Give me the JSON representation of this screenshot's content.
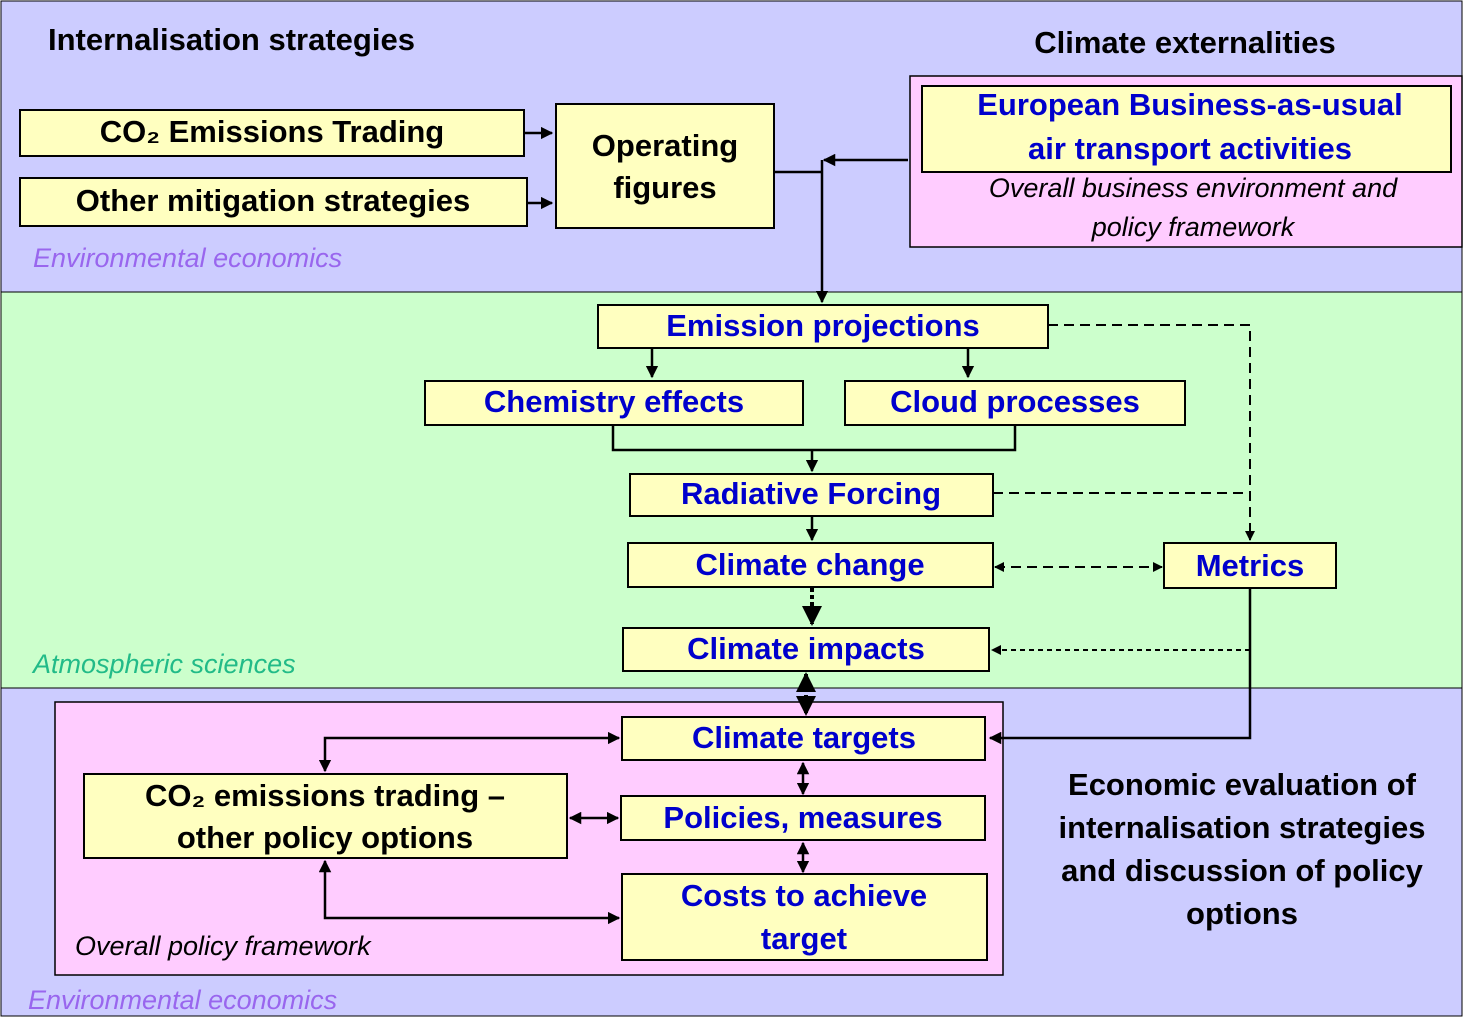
{
  "sections": {
    "top": {
      "title_left": "Internalisation strategies",
      "title_right": "Climate externalities",
      "label": "Environmental economics",
      "context": [
        "Overall business environment and",
        "policy framework"
      ]
    },
    "middle": {
      "label": "Atmospheric sciences"
    },
    "bottom": {
      "label": "Environmental economics",
      "context": "Overall policy framework",
      "evaluation": [
        "Economic evaluation of",
        "internalisation strategies",
        "and discussion of policy",
        "options"
      ]
    }
  },
  "nodes": [
    {
      "lines": [
        "CO₂ Emissions Trading"
      ]
    },
    {
      "lines": [
        "Other mitigation strategies"
      ]
    },
    {
      "lines": [
        "Operating",
        "figures"
      ]
    },
    {
      "lines": [
        "European Business-as-usual",
        "air transport activities"
      ]
    },
    {
      "lines": [
        "Emission projections"
      ]
    },
    {
      "lines": [
        "Chemistry effects"
      ]
    },
    {
      "lines": [
        "Cloud processes"
      ]
    },
    {
      "lines": [
        "Radiative Forcing"
      ]
    },
    {
      "lines": [
        "Climate change"
      ]
    },
    {
      "lines": [
        "Metrics"
      ]
    },
    {
      "lines": [
        "Climate impacts"
      ]
    },
    {
      "lines": [
        "Climate targets"
      ]
    },
    {
      "lines": [
        "CO₂ emissions trading –",
        "other policy options"
      ]
    },
    {
      "lines": [
        "Policies, measures"
      ]
    },
    {
      "lines": [
        "Costs to achieve",
        "target"
      ]
    }
  ]
}
